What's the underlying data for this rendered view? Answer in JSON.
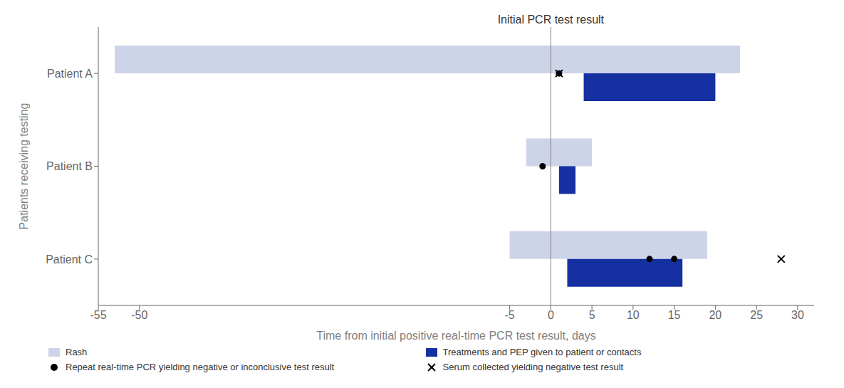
{
  "chart_data": {
    "type": "timeline",
    "orientation": "horizontal",
    "categories": [
      "Patient A",
      "Patient B",
      "Patient C"
    ],
    "series": [
      {
        "name": "Rash",
        "type": "bar",
        "color": "#cdd4e8",
        "values": [
          [
            -53,
            23
          ],
          [
            -3,
            5
          ],
          [
            -5,
            19
          ]
        ]
      },
      {
        "name": "Treatments and PEP given to patient or contacts",
        "type": "bar",
        "color": "#1530a0",
        "values": [
          [
            4,
            20
          ],
          [
            1,
            3
          ],
          [
            2,
            16
          ]
        ]
      },
      {
        "name": "Repeat real-time PCR yielding negative or inconclusive test result",
        "type": "scatter",
        "marker": "circle",
        "color": "#000000",
        "values": [
          [
            1
          ],
          [
            -1
          ],
          [
            12,
            15
          ]
        ]
      },
      {
        "name": "Serum collected yielding negative test result",
        "type": "scatter",
        "marker": "x",
        "color": "#000000",
        "values": [
          [
            1
          ],
          [],
          [
            28
          ]
        ]
      }
    ],
    "xlabel": "Time from initial positive real-time PCR test result, days",
    "ylabel": "Patients receiving testing",
    "annotations": [
      {
        "x": 0,
        "label": "Initial PCR test result"
      }
    ],
    "xlim": [
      -55,
      32
    ],
    "xticks": [
      -55,
      -50,
      -5,
      0,
      5,
      10,
      15,
      20,
      25,
      30
    ],
    "grid": false
  }
}
